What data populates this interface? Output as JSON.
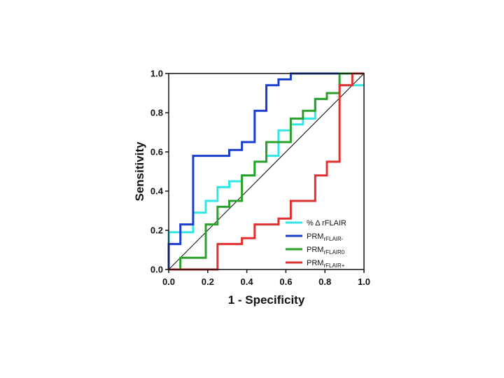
{
  "chart_data": {
    "type": "line",
    "title": "",
    "xlabel": "1 - Specificity",
    "ylabel": "Sensitivity",
    "xlim": [
      0,
      1
    ],
    "ylim": [
      0,
      1
    ],
    "xticks": [
      "0.0",
      "0.2",
      "0.4",
      "0.6",
      "0.8",
      "1.0"
    ],
    "yticks": [
      "0.0",
      "0.2",
      "0.4",
      "0.6",
      "0.8",
      "1.0"
    ],
    "reference_line": {
      "x": [
        0,
        1
      ],
      "y": [
        0,
        1
      ],
      "color": "#000000"
    },
    "legend_position": "bottom-right",
    "series": [
      {
        "name": "% Δ rFLAIR",
        "base": "% Δ rFLAIR",
        "sub": "",
        "color": "#33e6e6",
        "x": [
          0,
          0,
          0.02,
          0.02,
          0.125,
          0.125,
          0.19,
          0.19,
          0.25,
          0.25,
          0.31,
          0.31,
          0.375,
          0.375,
          0.44,
          0.44,
          0.5,
          0.5,
          0.5625,
          0.5625,
          0.625,
          0.625,
          0.6875,
          0.6875,
          0.75,
          0.75,
          0.81,
          0.81,
          0.875,
          0.875,
          0.94,
          0.94,
          1.0
        ],
        "y": [
          0,
          0.19,
          0.19,
          0.19,
          0.19,
          0.29,
          0.29,
          0.35,
          0.35,
          0.42,
          0.42,
          0.45,
          0.45,
          0.48,
          0.48,
          0.55,
          0.55,
          0.58,
          0.58,
          0.71,
          0.71,
          0.74,
          0.74,
          0.77,
          0.77,
          0.87,
          0.87,
          0.9,
          0.9,
          0.94,
          0.94,
          0.94,
          0.94
        ]
      },
      {
        "name": "PRM rFLAIR-",
        "base": "PRM",
        "sub": "rFLAIR-",
        "color": "#1a3dcc",
        "x": [
          0,
          0,
          0.06,
          0.06,
          0.125,
          0.125,
          0.31,
          0.31,
          0.375,
          0.375,
          0.44,
          0.44,
          0.5,
          0.5,
          0.5625,
          0.5625,
          0.625,
          0.625,
          1.0
        ],
        "y": [
          0,
          0.13,
          0.13,
          0.23,
          0.23,
          0.58,
          0.58,
          0.61,
          0.61,
          0.65,
          0.65,
          0.81,
          0.81,
          0.94,
          0.94,
          0.97,
          0.97,
          1.0,
          1.0
        ]
      },
      {
        "name": "PRM rFLAIR0",
        "base": "PRM",
        "sub": "rFLAIR0",
        "color": "#2aa12a",
        "x": [
          0,
          0.06,
          0.06,
          0.19,
          0.19,
          0.25,
          0.25,
          0.31,
          0.31,
          0.375,
          0.375,
          0.44,
          0.44,
          0.5,
          0.5,
          0.625,
          0.625,
          0.6875,
          0.6875,
          0.75,
          0.75,
          0.81,
          0.81,
          0.875,
          0.875,
          1.0
        ],
        "y": [
          0,
          0,
          0.06,
          0.06,
          0.23,
          0.23,
          0.32,
          0.32,
          0.35,
          0.35,
          0.48,
          0.48,
          0.55,
          0.55,
          0.65,
          0.65,
          0.77,
          0.77,
          0.81,
          0.81,
          0.87,
          0.87,
          0.9,
          0.9,
          1.0,
          1.0
        ]
      },
      {
        "name": "PRM rFLAIR+",
        "base": "PRM",
        "sub": "rFLAIR+",
        "color": "#e03030",
        "x": [
          0,
          0.25,
          0.25,
          0.375,
          0.375,
          0.44,
          0.44,
          0.5625,
          0.5625,
          0.625,
          0.625,
          0.75,
          0.75,
          0.81,
          0.81,
          0.875,
          0.875,
          0.94,
          0.94,
          1.0
        ],
        "y": [
          0,
          0,
          0.13,
          0.13,
          0.16,
          0.16,
          0.23,
          0.23,
          0.26,
          0.26,
          0.35,
          0.35,
          0.48,
          0.48,
          0.55,
          0.55,
          0.94,
          0.94,
          1.0,
          1.0
        ]
      }
    ]
  }
}
